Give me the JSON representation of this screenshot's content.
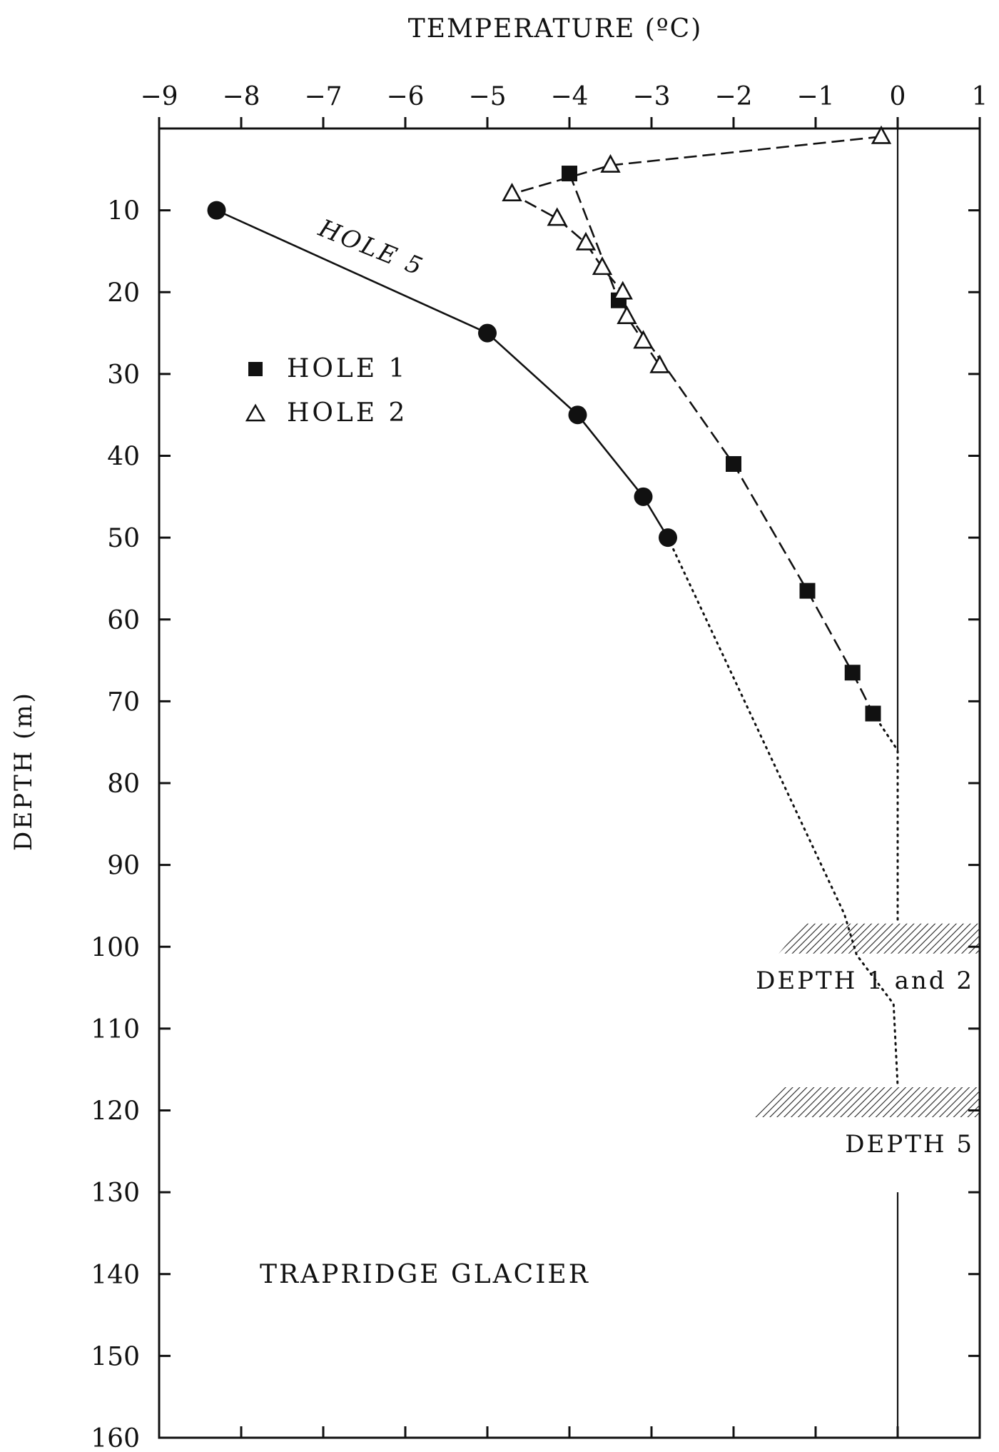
{
  "chart_data": {
    "type": "line",
    "orientation": "depth-profile",
    "title": "TRAPRIDGE GLACIER",
    "xlabel": "TEMPERATURE (ºC)",
    "ylabel": "DEPTH (m)",
    "x_axis_position": "top",
    "y_axis_direction": "downward",
    "xlim": [
      -9,
      1
    ],
    "ylim": [
      0,
      160
    ],
    "x_ticks": [
      -9,
      -8,
      -7,
      -6,
      -5,
      -4,
      -3,
      -2,
      -1,
      0,
      1
    ],
    "x_tick_labels": [
      "−9",
      "−8",
      "−7",
      "−6",
      "−5",
      "−4",
      "−3",
      "−2",
      "−1",
      "0",
      "1"
    ],
    "y_ticks": [
      10,
      20,
      30,
      40,
      50,
      60,
      70,
      80,
      90,
      100,
      110,
      120,
      130,
      140,
      150,
      160
    ],
    "y_tick_labels": [
      "10",
      "20",
      "30",
      "40",
      "50",
      "60",
      "70",
      "80",
      "90",
      "100",
      "110",
      "120",
      "130",
      "140",
      "150",
      "160"
    ],
    "grid": false,
    "legend_position": "upper-left",
    "series": [
      {
        "name": "HOLE 1",
        "marker": "filled-square",
        "points": [
          {
            "x": -4.0,
            "y": 5.5
          },
          {
            "x": -3.4,
            "y": 21
          },
          {
            "x": -2.0,
            "y": 41
          },
          {
            "x": -1.1,
            "y": 56.5
          },
          {
            "x": -0.55,
            "y": 66.5
          },
          {
            "x": -0.3,
            "y": 71.5
          }
        ]
      },
      {
        "name": "HOLE 2",
        "marker": "open-triangle",
        "points": [
          {
            "x": -0.2,
            "y": 1
          },
          {
            "x": -3.5,
            "y": 4.5
          },
          {
            "x": -4.7,
            "y": 8
          },
          {
            "x": -4.15,
            "y": 11
          },
          {
            "x": -3.8,
            "y": 14
          },
          {
            "x": -3.6,
            "y": 17
          },
          {
            "x": -3.35,
            "y": 20
          },
          {
            "x": -3.3,
            "y": 23
          },
          {
            "x": -3.1,
            "y": 26
          },
          {
            "x": -2.9,
            "y": 29
          }
        ]
      },
      {
        "name": "HOLE 5",
        "marker": "filled-circle",
        "points": [
          {
            "x": -8.3,
            "y": 10
          },
          {
            "x": -5.0,
            "y": 25
          },
          {
            "x": -3.9,
            "y": 35
          },
          {
            "x": -3.1,
            "y": 45
          },
          {
            "x": -2.8,
            "y": 50
          }
        ]
      }
    ],
    "extrapolations": [
      {
        "series": "HOLE 1",
        "points": [
          {
            "x": -0.3,
            "y": 71.5
          },
          {
            "x": 0.0,
            "y": 76
          },
          {
            "x": 0.0,
            "y": 97
          }
        ]
      },
      {
        "series": "HOLE 5",
        "points": [
          {
            "x": -2.8,
            "y": 50
          },
          {
            "x": -0.65,
            "y": 96
          },
          {
            "x": -0.5,
            "y": 101
          },
          {
            "x": -0.05,
            "y": 107
          },
          {
            "x": 0.0,
            "y": 117
          }
        ]
      }
    ],
    "bed_markers": [
      {
        "label": "DEPTH 1 and 2",
        "depth": 99,
        "x_from": -1.45,
        "x_to": 1.0
      },
      {
        "label": "DEPTH 5",
        "depth": 119,
        "x_from": -1.75,
        "x_to": 1.0
      }
    ],
    "melting_point_line": {
      "x": 0,
      "segments": [
        [
          0,
          76
        ],
        [
          130,
          160
        ]
      ]
    },
    "annotations": [
      {
        "text": "HOLE 5",
        "anchor_x": -6.45,
        "anchor_y": 15.5,
        "rotation": 22
      }
    ]
  }
}
